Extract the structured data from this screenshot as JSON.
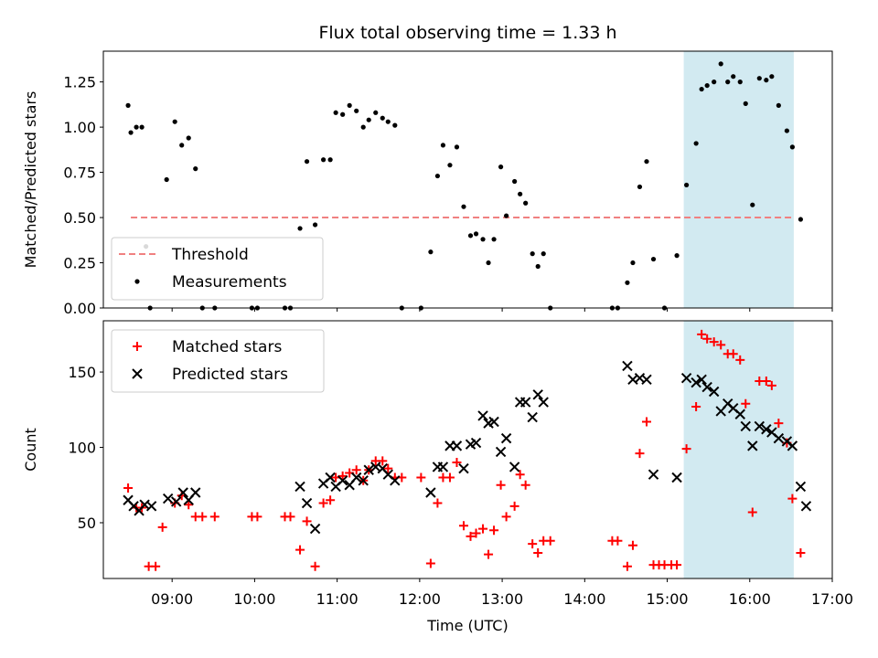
{
  "chart_data": [
    {
      "type": "scatter",
      "title": "Flux total observing time = 1.33 h",
      "xlabel": "",
      "ylabel": "Matched/Predicted stars",
      "xlim": [
        "08:10",
        "17:00"
      ],
      "ylim": [
        0,
        1.42
      ],
      "yticks": [
        "0.00",
        "0.25",
        "0.50",
        "0.75",
        "1.00",
        "1.25"
      ],
      "ytick_values": [
        0,
        0.25,
        0.5,
        0.75,
        1.0,
        1.25
      ],
      "grid": false,
      "legend_position": "lower-left",
      "highlight_band": {
        "start": "15:12",
        "end": "16:32",
        "color": "#add8e6"
      },
      "series": [
        {
          "name": "Threshold",
          "style": "dashed-line",
          "color": "#f08080",
          "points": [
            [
              "08:30",
              0.5
            ],
            [
              "16:32",
              0.5
            ]
          ]
        },
        {
          "name": "Measurements",
          "style": "dot",
          "color": "#000000",
          "points": [
            [
              "08:28",
              1.12
            ],
            [
              "08:30",
              0.97
            ],
            [
              "08:34",
              1.0
            ],
            [
              "08:38",
              1.0
            ],
            [
              "08:41",
              0.34
            ],
            [
              "08:44",
              0.0
            ],
            [
              "08:56",
              0.71
            ],
            [
              "09:02",
              1.03
            ],
            [
              "09:07",
              0.9
            ],
            [
              "09:12",
              0.94
            ],
            [
              "09:17",
              0.77
            ],
            [
              "09:22",
              0.0
            ],
            [
              "09:31",
              0.0
            ],
            [
              "09:58",
              0.0
            ],
            [
              "10:02",
              0.0
            ],
            [
              "10:22",
              0.0
            ],
            [
              "10:26",
              0.0
            ],
            [
              "10:33",
              0.44
            ],
            [
              "10:38",
              0.81
            ],
            [
              "10:44",
              0.46
            ],
            [
              "10:50",
              0.82
            ],
            [
              "10:55",
              0.82
            ],
            [
              "10:59",
              1.08
            ],
            [
              "11:04",
              1.07
            ],
            [
              "11:09",
              1.12
            ],
            [
              "11:14",
              1.09
            ],
            [
              "11:19",
              1.0
            ],
            [
              "11:23",
              1.04
            ],
            [
              "11:28",
              1.08
            ],
            [
              "11:33",
              1.05
            ],
            [
              "11:37",
              1.03
            ],
            [
              "11:42",
              1.01
            ],
            [
              "11:47",
              0.0
            ],
            [
              "12:01",
              0.0
            ],
            [
              "12:08",
              0.31
            ],
            [
              "12:13",
              0.73
            ],
            [
              "12:17",
              0.9
            ],
            [
              "12:22",
              0.79
            ],
            [
              "12:27",
              0.89
            ],
            [
              "12:32",
              0.56
            ],
            [
              "12:37",
              0.4
            ],
            [
              "12:41",
              0.41
            ],
            [
              "12:46",
              0.38
            ],
            [
              "12:50",
              0.25
            ],
            [
              "12:54",
              0.38
            ],
            [
              "12:59",
              0.78
            ],
            [
              "13:03",
              0.51
            ],
            [
              "13:09",
              0.7
            ],
            [
              "13:13",
              0.63
            ],
            [
              "13:17",
              0.58
            ],
            [
              "13:22",
              0.3
            ],
            [
              "13:26",
              0.23
            ],
            [
              "13:30",
              0.3
            ],
            [
              "13:35",
              0.0
            ],
            [
              "14:20",
              0.0
            ],
            [
              "14:24",
              0.0
            ],
            [
              "14:31",
              0.14
            ],
            [
              "14:35",
              0.25
            ],
            [
              "14:40",
              0.67
            ],
            [
              "14:45",
              0.81
            ],
            [
              "14:50",
              0.27
            ],
            [
              "14:58",
              0.0
            ],
            [
              "15:07",
              0.29
            ],
            [
              "15:14",
              0.68
            ],
            [
              "15:21",
              0.91
            ],
            [
              "15:25",
              1.21
            ],
            [
              "15:29",
              1.23
            ],
            [
              "15:34",
              1.25
            ],
            [
              "15:39",
              1.35
            ],
            [
              "15:44",
              1.25
            ],
            [
              "15:48",
              1.28
            ],
            [
              "15:53",
              1.25
            ],
            [
              "15:57",
              1.13
            ],
            [
              "16:02",
              0.57
            ],
            [
              "16:07",
              1.27
            ],
            [
              "16:12",
              1.26
            ],
            [
              "16:16",
              1.28
            ],
            [
              "16:21",
              1.12
            ],
            [
              "16:27",
              0.98
            ],
            [
              "16:31",
              0.89
            ],
            [
              "16:37",
              0.49
            ]
          ]
        }
      ]
    },
    {
      "type": "scatter",
      "title": "",
      "xlabel": "Time (UTC)",
      "ylabel": "Count",
      "xlim": [
        "08:10",
        "17:00"
      ],
      "ylim": [
        13,
        184
      ],
      "xticks": [
        "09:00",
        "10:00",
        "11:00",
        "12:00",
        "13:00",
        "14:00",
        "15:00",
        "16:00",
        "17:00"
      ],
      "yticks": [
        "50",
        "100",
        "150"
      ],
      "ytick_values": [
        50,
        100,
        150
      ],
      "grid": false,
      "legend_position": "upper-left",
      "highlight_band": {
        "start": "15:12",
        "end": "16:32",
        "color": "#add8e6"
      },
      "series": [
        {
          "name": "Matched stars",
          "style": "plus",
          "color": "#ff0000",
          "points": [
            [
              "08:28",
              73
            ],
            [
              "08:34",
              60
            ],
            [
              "08:38",
              60
            ],
            [
              "08:43",
              21
            ],
            [
              "08:48",
              21
            ],
            [
              "08:53",
              47
            ],
            [
              "09:02",
              63
            ],
            [
              "09:07",
              68
            ],
            [
              "09:12",
              62
            ],
            [
              "09:17",
              54
            ],
            [
              "09:22",
              54
            ],
            [
              "09:31",
              54
            ],
            [
              "09:58",
              54
            ],
            [
              "10:02",
              54
            ],
            [
              "10:22",
              54
            ],
            [
              "10:26",
              54
            ],
            [
              "10:33",
              32
            ],
            [
              "10:38",
              51
            ],
            [
              "10:44",
              21
            ],
            [
              "10:50",
              63
            ],
            [
              "10:55",
              65
            ],
            [
              "10:59",
              80
            ],
            [
              "11:04",
              81
            ],
            [
              "11:09",
              83
            ],
            [
              "11:14",
              85
            ],
            [
              "11:19",
              78
            ],
            [
              "11:23",
              85
            ],
            [
              "11:28",
              91
            ],
            [
              "11:33",
              91
            ],
            [
              "11:37",
              86
            ],
            [
              "11:42",
              80
            ],
            [
              "11:47",
              80
            ],
            [
              "12:01",
              80
            ],
            [
              "12:08",
              23
            ],
            [
              "12:13",
              63
            ],
            [
              "12:17",
              80
            ],
            [
              "12:22",
              80
            ],
            [
              "12:27",
              90
            ],
            [
              "12:32",
              48
            ],
            [
              "12:37",
              41
            ],
            [
              "12:41",
              43
            ],
            [
              "12:46",
              46
            ],
            [
              "12:50",
              29
            ],
            [
              "12:54",
              45
            ],
            [
              "12:59",
              75
            ],
            [
              "13:03",
              54
            ],
            [
              "13:09",
              61
            ],
            [
              "13:13",
              82
            ],
            [
              "13:17",
              75
            ],
            [
              "13:22",
              36
            ],
            [
              "13:26",
              30
            ],
            [
              "13:30",
              38
            ],
            [
              "13:35",
              38
            ],
            [
              "14:20",
              38
            ],
            [
              "14:24",
              38
            ],
            [
              "14:31",
              21
            ],
            [
              "14:35",
              35
            ],
            [
              "14:40",
              96
            ],
            [
              "14:45",
              117
            ],
            [
              "14:50",
              22
            ],
            [
              "14:54",
              22
            ],
            [
              "14:58",
              22
            ],
            [
              "15:03",
              22
            ],
            [
              "15:07",
              22
            ],
            [
              "15:14",
              99
            ],
            [
              "15:21",
              127
            ],
            [
              "15:25",
              175
            ],
            [
              "15:29",
              172
            ],
            [
              "15:34",
              170
            ],
            [
              "15:39",
              168
            ],
            [
              "15:44",
              162
            ],
            [
              "15:48",
              162
            ],
            [
              "15:53",
              158
            ],
            [
              "15:57",
              129
            ],
            [
              "16:02",
              57
            ],
            [
              "16:07",
              144
            ],
            [
              "16:12",
              144
            ],
            [
              "16:16",
              141
            ],
            [
              "16:21",
              116
            ],
            [
              "16:27",
              103
            ],
            [
              "16:31",
              66
            ],
            [
              "16:37",
              30
            ]
          ]
        },
        {
          "name": "Predicted stars",
          "style": "cross",
          "color": "#000000",
          "points": [
            [
              "08:28",
              65
            ],
            [
              "08:32",
              61
            ],
            [
              "08:36",
              58
            ],
            [
              "08:40",
              62
            ],
            [
              "08:45",
              61
            ],
            [
              "08:57",
              66
            ],
            [
              "09:03",
              64
            ],
            [
              "09:08",
              70
            ],
            [
              "09:12",
              65
            ],
            [
              "09:17",
              70
            ],
            [
              "10:33",
              74
            ],
            [
              "10:38",
              63
            ],
            [
              "10:44",
              46
            ],
            [
              "10:50",
              76
            ],
            [
              "10:55",
              80
            ],
            [
              "10:59",
              74
            ],
            [
              "11:04",
              78
            ],
            [
              "11:09",
              75
            ],
            [
              "11:14",
              80
            ],
            [
              "11:19",
              78
            ],
            [
              "11:23",
              85
            ],
            [
              "11:28",
              87
            ],
            [
              "11:33",
              86
            ],
            [
              "11:37",
              82
            ],
            [
              "11:42",
              78
            ],
            [
              "12:08",
              70
            ],
            [
              "12:13",
              87
            ],
            [
              "12:17",
              87
            ],
            [
              "12:22",
              101
            ],
            [
              "12:27",
              101
            ],
            [
              "12:32",
              86
            ],
            [
              "12:37",
              102
            ],
            [
              "12:41",
              103
            ],
            [
              "12:46",
              121
            ],
            [
              "12:50",
              116
            ],
            [
              "12:54",
              117
            ],
            [
              "12:59",
              97
            ],
            [
              "13:03",
              106
            ],
            [
              "13:09",
              87
            ],
            [
              "13:13",
              130
            ],
            [
              "13:17",
              130
            ],
            [
              "13:22",
              120
            ],
            [
              "13:26",
              135
            ],
            [
              "13:30",
              130
            ],
            [
              "14:31",
              154
            ],
            [
              "14:35",
              145
            ],
            [
              "14:40",
              146
            ],
            [
              "14:45",
              145
            ],
            [
              "14:50",
              82
            ],
            [
              "15:07",
              80
            ],
            [
              "15:14",
              146
            ],
            [
              "15:21",
              143
            ],
            [
              "15:25",
              145
            ],
            [
              "15:29",
              140
            ],
            [
              "15:34",
              137
            ],
            [
              "15:39",
              124
            ],
            [
              "15:44",
              129
            ],
            [
              "15:48",
              126
            ],
            [
              "15:53",
              122
            ],
            [
              "15:57",
              114
            ],
            [
              "16:02",
              101
            ],
            [
              "16:07",
              114
            ],
            [
              "16:12",
              112
            ],
            [
              "16:16",
              110
            ],
            [
              "16:21",
              106
            ],
            [
              "16:27",
              104
            ],
            [
              "16:31",
              101
            ],
            [
              "16:37",
              74
            ],
            [
              "16:41",
              61
            ]
          ]
        }
      ]
    }
  ]
}
